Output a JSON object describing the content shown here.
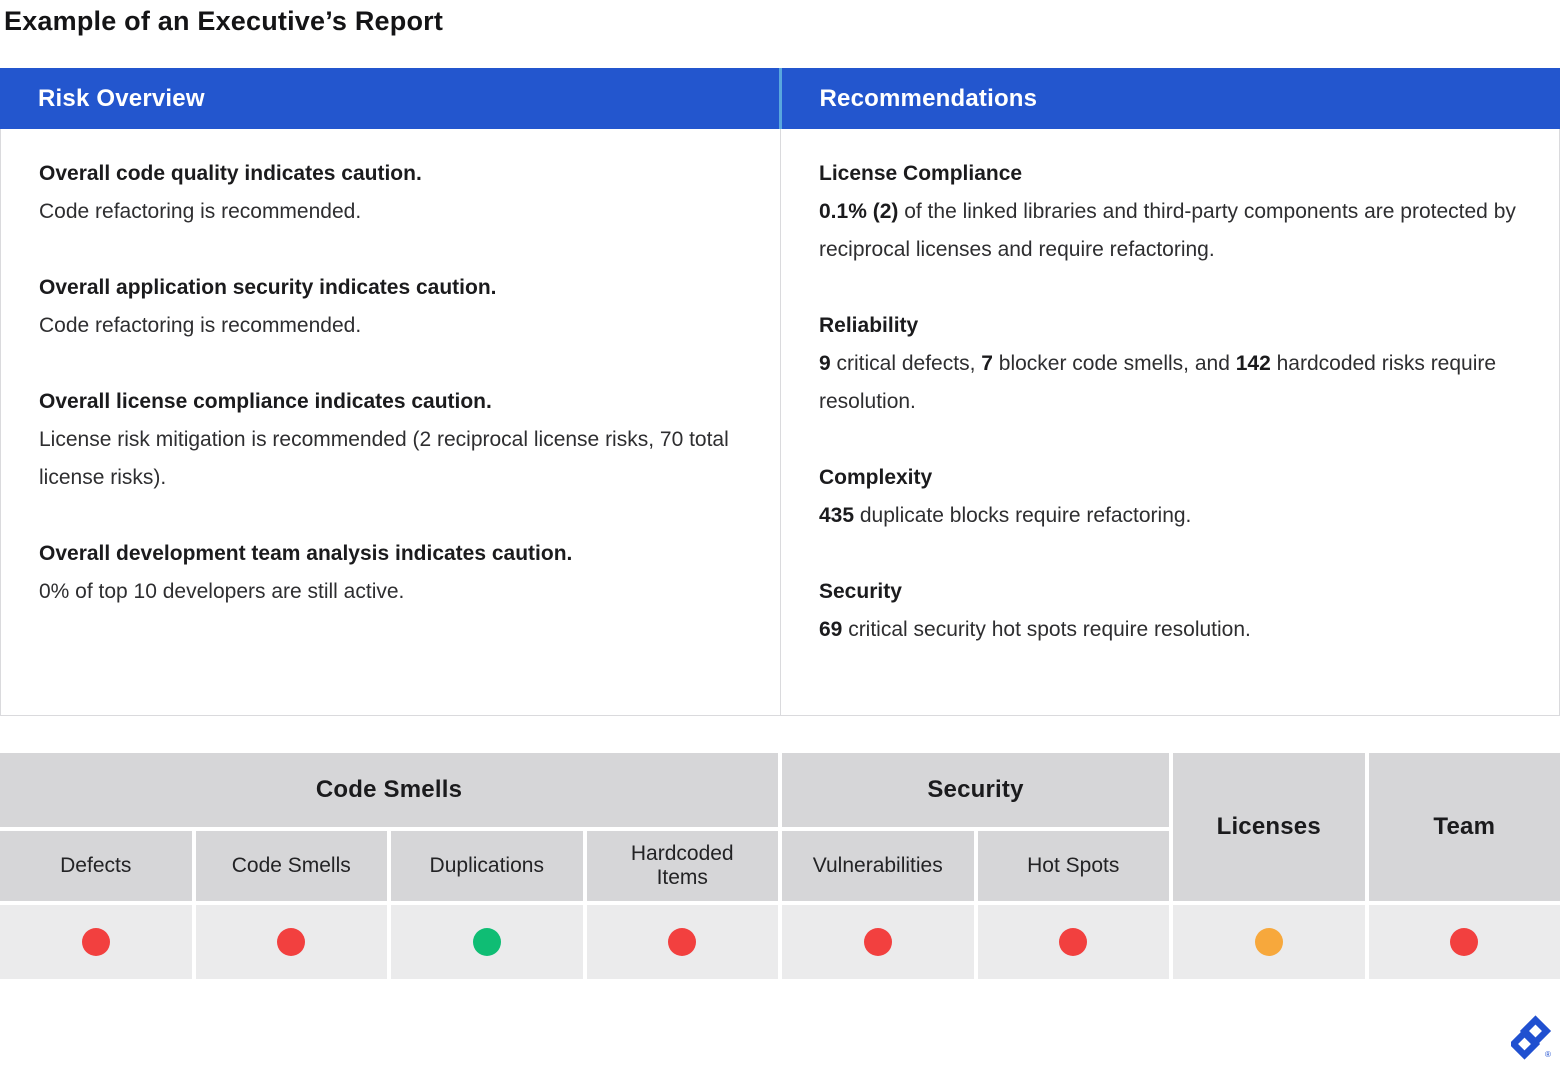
{
  "page": {
    "title": "Example of an Executive’s Report"
  },
  "panel": {
    "risk_overview": {
      "header": "Risk Overview",
      "items": [
        {
          "headline": "Overall code quality indicates caution.",
          "detail": "Code refactoring is recommended."
        },
        {
          "headline": "Overall application security indicates caution.",
          "detail": "Code refactoring is recommended."
        },
        {
          "headline": "Overall license compliance indicates caution.",
          "detail": "License risk mitigation is recommended (2 reciprocal license risks, 70 total license risks)."
        },
        {
          "headline": "Overall development team analysis indicates caution.",
          "detail": "0% of top 10 developers are still active."
        }
      ]
    },
    "recommendations": {
      "header": "Recommendations",
      "items": [
        {
          "heading": "License Compliance",
          "segments": [
            {
              "t": "0.1% (2)",
              "b": true
            },
            {
              "t": " of the linked libraries and third-party components are protected by reciprocal licenses and require refactoring.",
              "b": false
            }
          ]
        },
        {
          "heading": "Reliability",
          "segments": [
            {
              "t": "9",
              "b": true
            },
            {
              "t": " critical defects, ",
              "b": false
            },
            {
              "t": "7",
              "b": true
            },
            {
              "t": " blocker code smells, and ",
              "b": false
            },
            {
              "t": "142",
              "b": true
            },
            {
              "t": " hardcoded risks require resolution.",
              "b": false
            }
          ]
        },
        {
          "heading": "Complexity",
          "segments": [
            {
              "t": "435",
              "b": true
            },
            {
              "t": " duplicate blocks require refactoring.",
              "b": false
            }
          ]
        },
        {
          "heading": "Security",
          "segments": [
            {
              "t": "69",
              "b": true
            },
            {
              "t": " critical security hot spots require resolution.",
              "b": false
            }
          ]
        }
      ]
    }
  },
  "scorecard": {
    "groups": {
      "code_smells": "Code Smells",
      "security": "Security",
      "licenses": "Licenses",
      "team": "Team"
    },
    "columns": [
      {
        "label": "Defects",
        "status": "red"
      },
      {
        "label": "Code Smells",
        "status": "red"
      },
      {
        "label": "Duplications",
        "status": "green"
      },
      {
        "label": "Hardcoded Items",
        "status": "red"
      },
      {
        "label": "Vulnerabilities",
        "status": "red"
      },
      {
        "label": "Hot Spots",
        "status": "red"
      },
      {
        "label": "Licenses",
        "status": "orange"
      },
      {
        "label": "Team",
        "status": "red"
      }
    ],
    "status_colors": {
      "red": "#f2403f",
      "green": "#0fbd74",
      "orange": "#f7a83c"
    }
  },
  "branding": {
    "registered_mark": "®",
    "logo_color": "#2050d0"
  },
  "colors": {
    "header_blue": "#2356ce",
    "header_divider_blue": "#58a7de",
    "panel_border": "#dadadd",
    "table_header_gray": "#d6d6d8",
    "table_row_gray": "#ebebec"
  }
}
